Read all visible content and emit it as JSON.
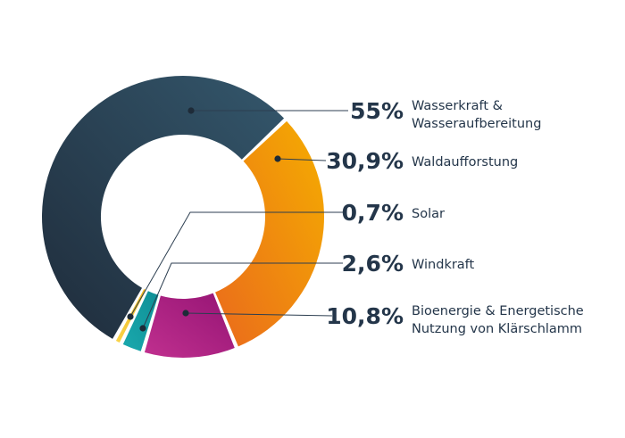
{
  "chart_data": {
    "type": "pie",
    "donut": true,
    "legend": "right",
    "slices": [
      {
        "value_label": "55%",
        "value": 55.0,
        "label_lines": [
          "Wasserkraft &",
          "Wasseraufbereitung"
        ],
        "color_start": "#1f2c3b",
        "color_end": "#34576c"
      },
      {
        "value_label": "30,9%",
        "value": 30.9,
        "label_lines": [
          "Waldaufforstung"
        ],
        "color_start": "#f5ad00",
        "color_end": "#ea6a1c"
      },
      {
        "value_label": "10,8%",
        "value": 10.8,
        "label_lines": [
          "Bioenergie & Energetische",
          "Nutzung von Klärschlamm"
        ],
        "color_start": "#c0308f",
        "color_end": "#951474"
      },
      {
        "value_label": "2,6%",
        "value": 2.6,
        "label_lines": [
          "Windkraft"
        ],
        "color_start": "#1aa9ae",
        "color_end": "#0f8f95"
      },
      {
        "value_label": "0,7%",
        "value": 0.7,
        "label_lines": [
          "Solar"
        ],
        "color_start": "#f8d34a",
        "color_end": "#f2b91c"
      }
    ]
  }
}
